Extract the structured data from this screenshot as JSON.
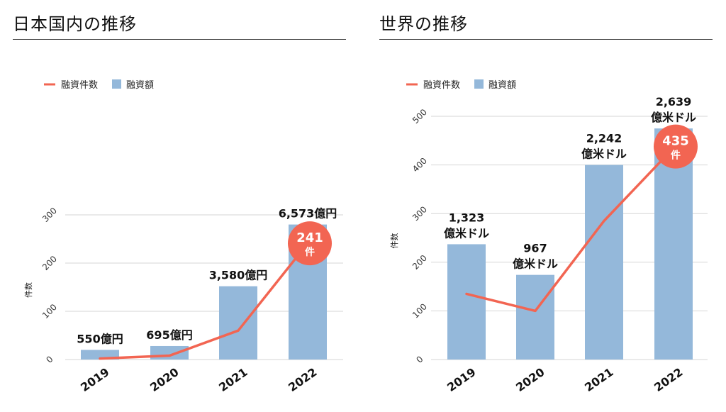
{
  "left_title": "日本国内の推移",
  "right_title": "世界の推移",
  "chart_data": [
    {
      "type": "bar",
      "title": "日本国内の推移",
      "categories": [
        "2019",
        "2020",
        "2021",
        "2022"
      ],
      "ylabel": "件数",
      "ylim": [
        0,
        300
      ],
      "yticks": [
        "0",
        "100",
        "200",
        "300"
      ],
      "grid": true,
      "legend_position": "top-left",
      "legend": [
        {
          "name": "融資件数",
          "kind": "line",
          "color": "#F26552"
        },
        {
          "name": "融資額",
          "kind": "bar",
          "color": "#94B8DA"
        }
      ],
      "series": [
        {
          "name": "融資額",
          "kind": "bar",
          "values": [
            20,
            28,
            152,
            280
          ],
          "labels": [
            [
              "550億円"
            ],
            [
              "695億円"
            ],
            [
              "3,580億円"
            ],
            [
              "6,573億円"
            ]
          ]
        },
        {
          "name": "融資件数",
          "kind": "line",
          "values": [
            2,
            8,
            60,
            241
          ]
        }
      ],
      "callout": {
        "value": "241",
        "unit": "件"
      }
    },
    {
      "type": "bar",
      "title": "世界の推移",
      "categories": [
        "2019",
        "2020",
        "2021",
        "2022"
      ],
      "ylabel": "件数",
      "ylim": [
        0,
        500
      ],
      "yticks": [
        "0",
        "100",
        "200",
        "300",
        "400",
        "500"
      ],
      "grid": true,
      "legend_position": "top-left",
      "legend": [
        {
          "name": "融資件数",
          "kind": "line",
          "color": "#F26552"
        },
        {
          "name": "融資額",
          "kind": "bar",
          "color": "#94B8DA"
        }
      ],
      "series": [
        {
          "name": "融資額",
          "kind": "bar",
          "values": [
            237,
            174,
            400,
            475
          ],
          "labels": [
            [
              "1,323",
              "億米ドル"
            ],
            [
              "967",
              "億米ドル"
            ],
            [
              "2,242",
              "億米ドル"
            ],
            [
              "2,639",
              "億米ドル"
            ]
          ]
        },
        {
          "name": "融資件数",
          "kind": "line",
          "values": [
            135,
            100,
            285,
            435
          ]
        }
      ],
      "callout": {
        "value": "435",
        "unit": "件"
      }
    }
  ]
}
